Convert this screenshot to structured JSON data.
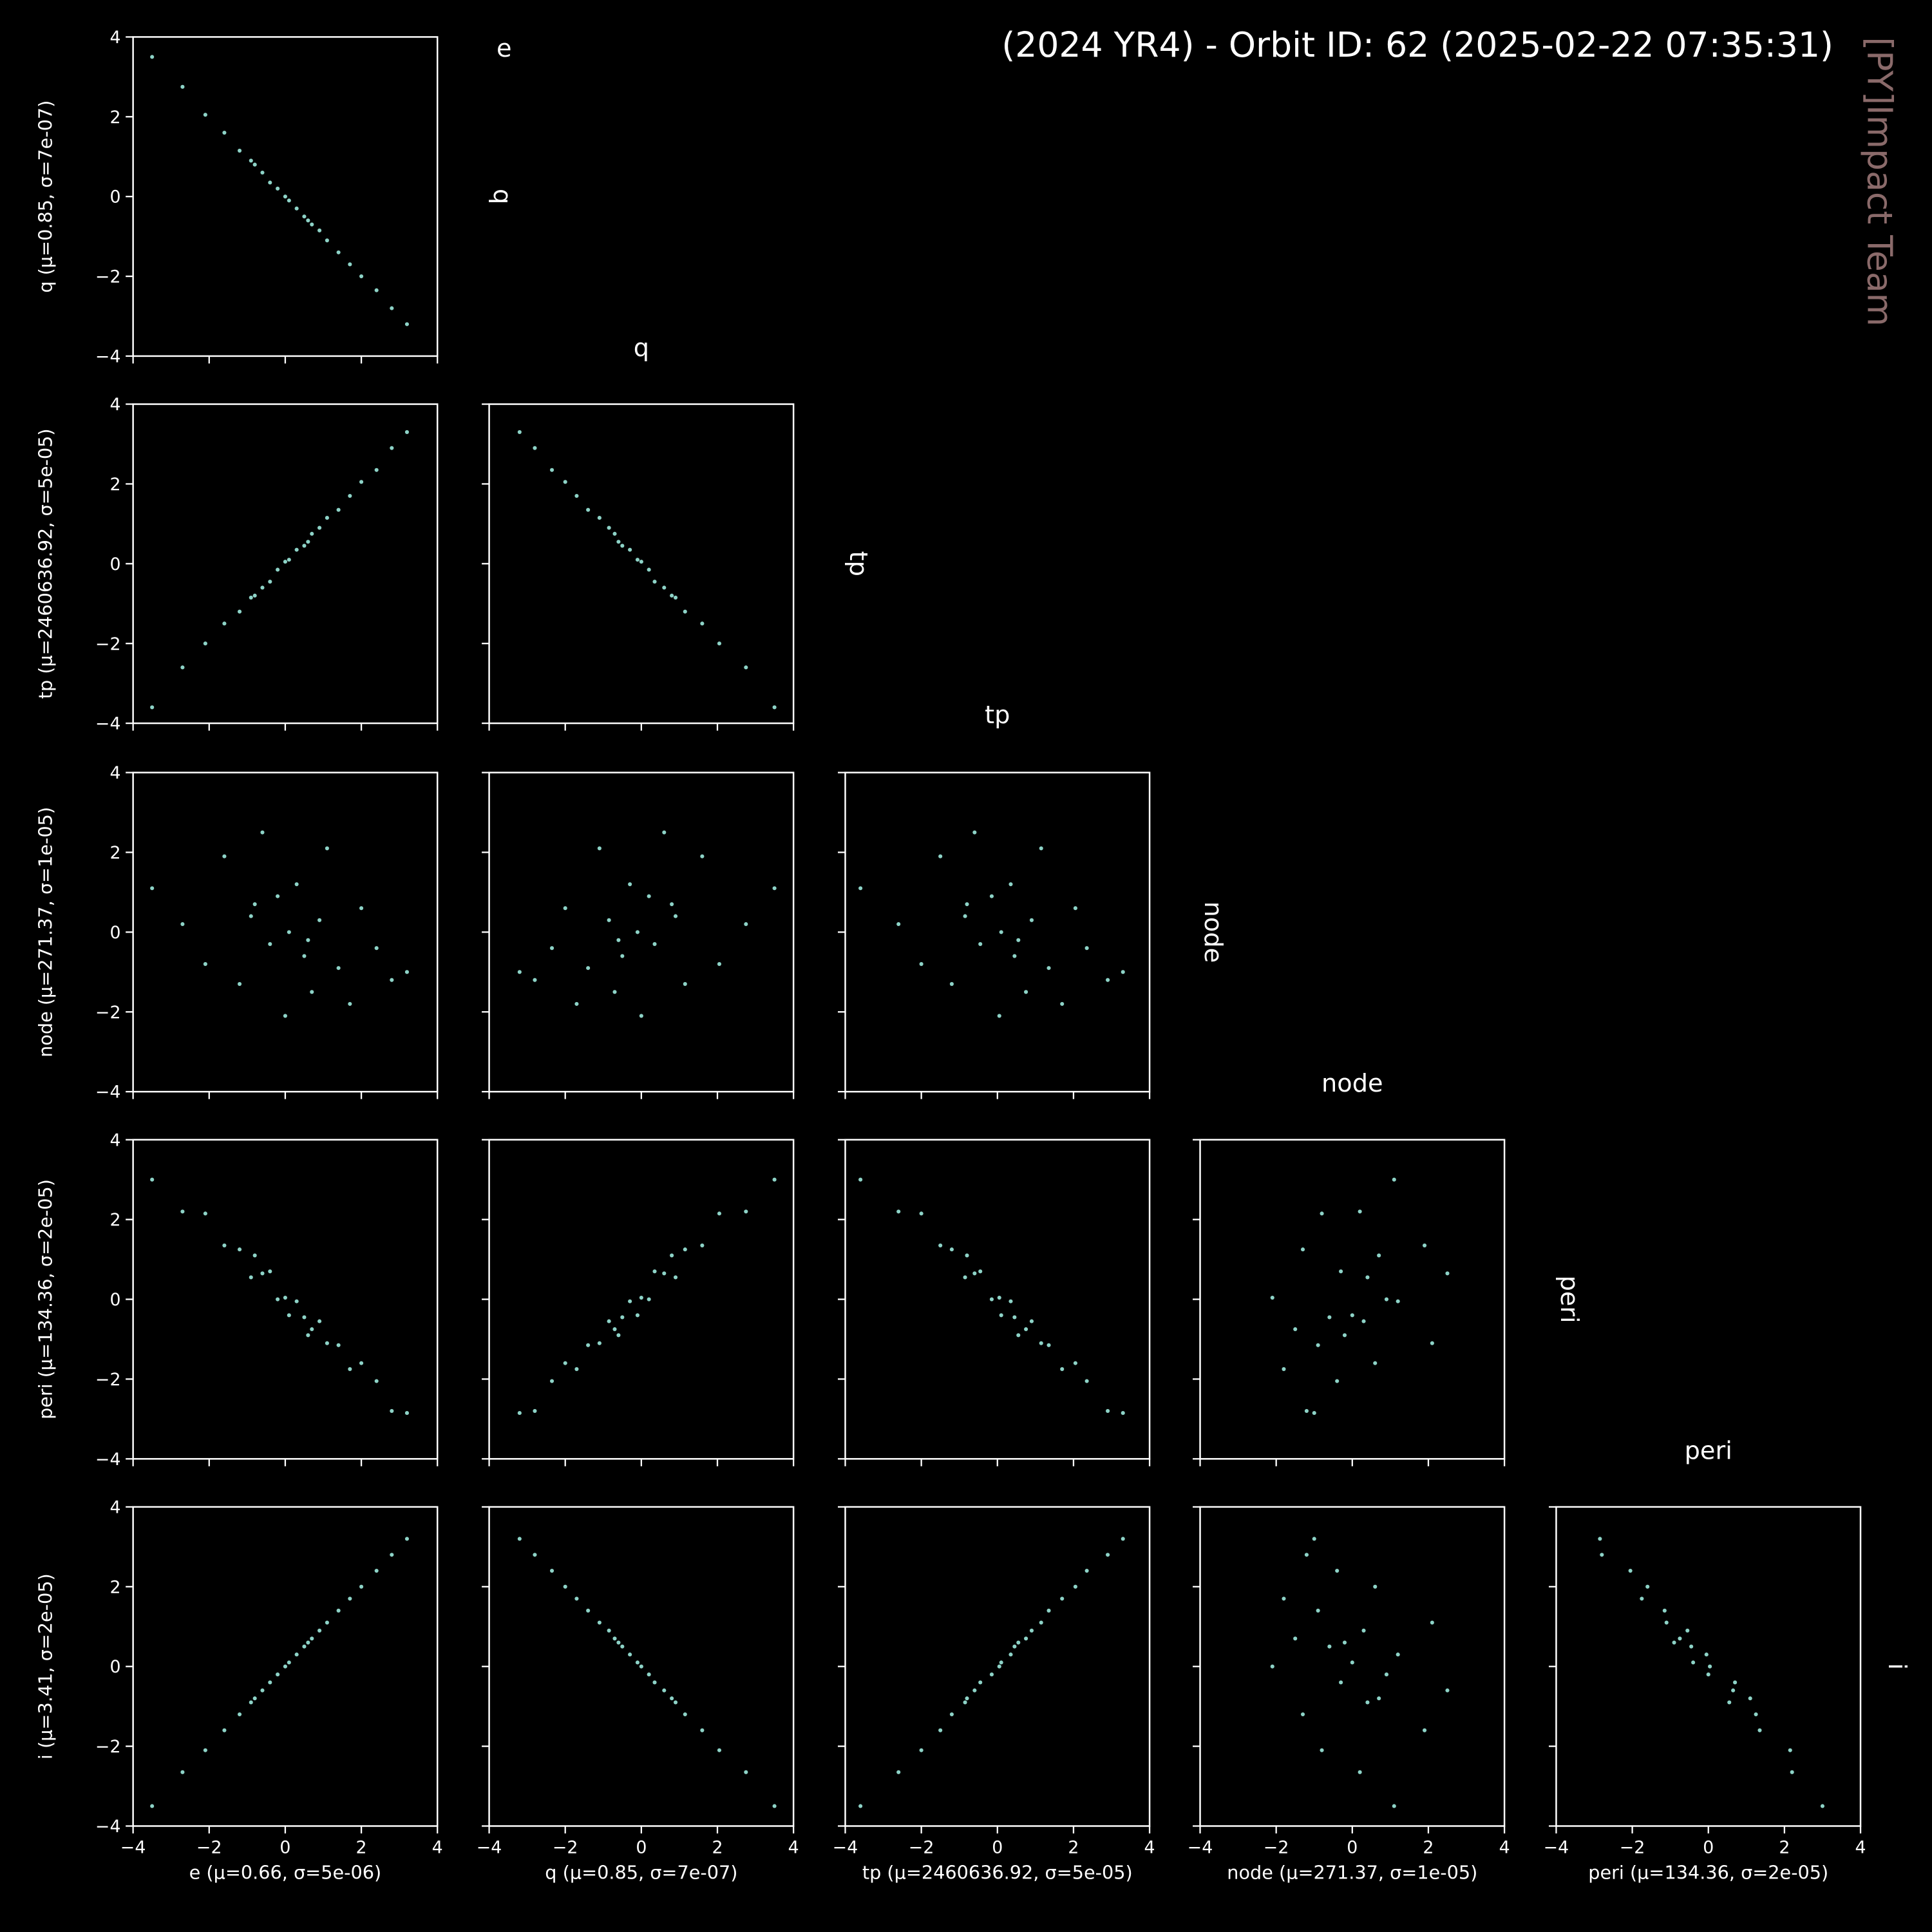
{
  "title": "(2024 YR4) - Orbit ID: 62 (2025-02-22 07:35:31)",
  "watermark": "[PY]Impact Team",
  "variables": [
    "e",
    "q",
    "tp",
    "node",
    "peri",
    "i"
  ],
  "chart_data": [
    {
      "type": "scatter",
      "ylabel": "q (μ=0.85, σ=7e-07)",
      "color": "#8dd3c7",
      "x": [
        -3.5,
        -2.7,
        -2.1,
        -1.6,
        -1.2,
        -0.9,
        -0.6,
        -0.4,
        -0.2,
        0.0,
        0.1,
        0.3,
        0.5,
        0.7,
        0.9,
        1.1,
        1.4,
        1.7,
        2.0,
        2.4,
        2.8,
        3.2,
        -0.8,
        0.6
      ],
      "y": [
        3.5,
        2.75,
        2.05,
        1.6,
        1.15,
        0.9,
        0.6,
        0.35,
        0.2,
        0.0,
        -0.1,
        -0.3,
        -0.5,
        -0.7,
        -0.85,
        -1.1,
        -1.4,
        -1.7,
        -2.0,
        -2.35,
        -2.8,
        -3.2,
        0.8,
        -0.6
      ],
      "xlim": [
        -4,
        4
      ],
      "ylim": [
        -4,
        4
      ],
      "xticks": [
        {
          "value": -4,
          "label": "−4"
        },
        {
          "value": -2,
          "label": "−2"
        },
        0,
        2,
        4
      ],
      "yticks": [
        {
          "value": -4,
          "label": "−4"
        },
        {
          "value": -2,
          "label": "−2"
        },
        0,
        2,
        4
      ]
    },
    {
      "type": "scatter",
      "ylabel": "tp (μ=2460636.92, σ=5e-05)",
      "color": "#8dd3c7",
      "x": [
        -3.5,
        -2.7,
        -2.1,
        -1.6,
        -1.2,
        -0.9,
        -0.6,
        -0.4,
        -0.2,
        0.0,
        0.1,
        0.3,
        0.5,
        0.7,
        0.9,
        1.1,
        1.4,
        1.7,
        2.0,
        2.4,
        2.8,
        3.2,
        -0.8,
        0.6
      ],
      "y": [
        -3.6,
        -2.6,
        -2.0,
        -1.5,
        -1.2,
        -0.85,
        -0.6,
        -0.45,
        -0.15,
        0.05,
        0.1,
        0.35,
        0.45,
        0.75,
        0.9,
        1.15,
        1.35,
        1.7,
        2.05,
        2.35,
        2.9,
        3.3,
        -0.8,
        0.55
      ],
      "xlim": [
        -4,
        4
      ],
      "ylim": [
        -4,
        4
      ],
      "xticks": [
        {
          "value": -4,
          "label": "−4"
        },
        {
          "value": -2,
          "label": "−2"
        },
        0,
        2,
        4
      ],
      "yticks": [
        {
          "value": -4,
          "label": "−4"
        },
        {
          "value": -2,
          "label": "−2"
        },
        0,
        2,
        4
      ]
    },
    {
      "type": "scatter",
      "color": "#8dd3c7",
      "x": [
        3.5,
        2.75,
        2.05,
        1.6,
        1.15,
        0.9,
        0.6,
        0.35,
        0.2,
        0.0,
        -0.1,
        -0.3,
        -0.5,
        -0.7,
        -0.85,
        -1.1,
        -1.4,
        -1.7,
        -2.0,
        -2.35,
        -2.8,
        -3.2,
        0.8,
        -0.6
      ],
      "y": [
        -3.6,
        -2.6,
        -2.0,
        -1.5,
        -1.2,
        -0.85,
        -0.6,
        -0.45,
        -0.15,
        0.05,
        0.1,
        0.35,
        0.45,
        0.75,
        0.9,
        1.15,
        1.35,
        1.7,
        2.05,
        2.35,
        2.9,
        3.3,
        -0.8,
        0.55
      ],
      "xlim": [
        -4,
        4
      ],
      "ylim": [
        -4,
        4
      ],
      "xticks": [
        {
          "value": -4,
          "label": "−4"
        },
        {
          "value": -2,
          "label": "−2"
        },
        0,
        2,
        4
      ],
      "yticks": [
        {
          "value": -4,
          "label": "−4"
        },
        {
          "value": -2,
          "label": "−2"
        },
        0,
        2,
        4
      ]
    },
    {
      "type": "scatter",
      "ylabel": "node (μ=271.37, σ=1e-05)",
      "color": "#8dd3c7",
      "x": [
        -3.5,
        -2.7,
        -2.1,
        -1.6,
        -1.2,
        -0.9,
        -0.6,
        -0.4,
        -0.2,
        0.0,
        0.1,
        0.3,
        0.5,
        0.7,
        0.9,
        1.1,
        1.4,
        1.7,
        2.0,
        2.4,
        2.8,
        3.2,
        -0.8,
        0.6
      ],
      "y": [
        1.1,
        0.2,
        -0.8,
        1.9,
        -1.3,
        0.4,
        2.5,
        -0.3,
        0.9,
        -2.1,
        0.0,
        1.2,
        -0.6,
        -1.5,
        0.3,
        2.1,
        -0.9,
        -1.8,
        0.6,
        -0.4,
        -1.2,
        -1.0,
        0.7,
        -0.2
      ],
      "xlim": [
        -4,
        4
      ],
      "ylim": [
        -4,
        4
      ],
      "xticks": [
        {
          "value": -4,
          "label": "−4"
        },
        {
          "value": -2,
          "label": "−2"
        },
        0,
        2,
        4
      ],
      "yticks": [
        {
          "value": -4,
          "label": "−4"
        },
        {
          "value": -2,
          "label": "−2"
        },
        0,
        2,
        4
      ]
    },
    {
      "type": "scatter",
      "color": "#8dd3c7",
      "x": [
        3.5,
        2.75,
        2.05,
        1.6,
        1.15,
        0.9,
        0.6,
        0.35,
        0.2,
        0.0,
        -0.1,
        -0.3,
        -0.5,
        -0.7,
        -0.85,
        -1.1,
        -1.4,
        -1.7,
        -2.0,
        -2.35,
        -2.8,
        -3.2,
        0.8,
        -0.6
      ],
      "y": [
        1.1,
        0.2,
        -0.8,
        1.9,
        -1.3,
        0.4,
        2.5,
        -0.3,
        0.9,
        -2.1,
        0.0,
        1.2,
        -0.6,
        -1.5,
        0.3,
        2.1,
        -0.9,
        -1.8,
        0.6,
        -0.4,
        -1.2,
        -1.0,
        0.7,
        -0.2
      ],
      "xlim": [
        -4,
        4
      ],
      "ylim": [
        -4,
        4
      ],
      "xticks": [
        {
          "value": -4,
          "label": "−4"
        },
        {
          "value": -2,
          "label": "−2"
        },
        0,
        2,
        4
      ],
      "yticks": [
        {
          "value": -4,
          "label": "−4"
        },
        {
          "value": -2,
          "label": "−2"
        },
        0,
        2,
        4
      ]
    },
    {
      "type": "scatter",
      "color": "#8dd3c7",
      "x": [
        -3.6,
        -2.6,
        -2.0,
        -1.5,
        -1.2,
        -0.85,
        -0.6,
        -0.45,
        -0.15,
        0.05,
        0.1,
        0.35,
        0.45,
        0.75,
        0.9,
        1.15,
        1.35,
        1.7,
        2.05,
        2.35,
        2.9,
        3.3,
        -0.8,
        0.55
      ],
      "y": [
        1.1,
        0.2,
        -0.8,
        1.9,
        -1.3,
        0.4,
        2.5,
        -0.3,
        0.9,
        -2.1,
        0.0,
        1.2,
        -0.6,
        -1.5,
        0.3,
        2.1,
        -0.9,
        -1.8,
        0.6,
        -0.4,
        -1.2,
        -1.0,
        0.7,
        -0.2
      ],
      "xlim": [
        -4,
        4
      ],
      "ylim": [
        -4,
        4
      ],
      "xticks": [
        {
          "value": -4,
          "label": "−4"
        },
        {
          "value": -2,
          "label": "−2"
        },
        0,
        2,
        4
      ],
      "yticks": [
        {
          "value": -4,
          "label": "−4"
        },
        {
          "value": -2,
          "label": "−2"
        },
        0,
        2,
        4
      ]
    },
    {
      "type": "scatter",
      "ylabel": "peri (μ=134.36, σ=2e-05)",
      "color": "#8dd3c7",
      "x": [
        -3.5,
        -2.7,
        -2.1,
        -1.6,
        -1.2,
        -0.9,
        -0.6,
        -0.4,
        -0.2,
        0.0,
        0.1,
        0.3,
        0.5,
        0.7,
        0.9,
        1.1,
        1.4,
        1.7,
        2.0,
        2.4,
        2.8,
        3.2,
        -0.8,
        0.6
      ],
      "y": [
        3.0,
        2.2,
        2.15,
        1.35,
        1.25,
        0.55,
        0.65,
        0.7,
        0.0,
        0.04,
        -0.4,
        -0.05,
        -0.45,
        -0.75,
        -0.55,
        -1.1,
        -1.15,
        -1.75,
        -1.6,
        -2.05,
        -2.8,
        -2.85,
        1.1,
        -0.9
      ],
      "xlim": [
        -4,
        4
      ],
      "ylim": [
        -4,
        4
      ],
      "xticks": [
        {
          "value": -4,
          "label": "−4"
        },
        {
          "value": -2,
          "label": "−2"
        },
        0,
        2,
        4
      ],
      "yticks": [
        {
          "value": -4,
          "label": "−4"
        },
        {
          "value": -2,
          "label": "−2"
        },
        0,
        2,
        4
      ]
    },
    {
      "type": "scatter",
      "color": "#8dd3c7",
      "x": [
        3.5,
        2.75,
        2.05,
        1.6,
        1.15,
        0.9,
        0.6,
        0.35,
        0.2,
        0.0,
        -0.1,
        -0.3,
        -0.5,
        -0.7,
        -0.85,
        -1.1,
        -1.4,
        -1.7,
        -2.0,
        -2.35,
        -2.8,
        -3.2,
        0.8,
        -0.6
      ],
      "y": [
        3.0,
        2.2,
        2.15,
        1.35,
        1.25,
        0.55,
        0.65,
        0.7,
        0.0,
        0.04,
        -0.4,
        -0.05,
        -0.45,
        -0.75,
        -0.55,
        -1.1,
        -1.15,
        -1.75,
        -1.6,
        -2.05,
        -2.8,
        -2.85,
        1.1,
        -0.9
      ],
      "xlim": [
        -4,
        4
      ],
      "ylim": [
        -4,
        4
      ],
      "xticks": [
        {
          "value": -4,
          "label": "−4"
        },
        {
          "value": -2,
          "label": "−2"
        },
        0,
        2,
        4
      ],
      "yticks": [
        {
          "value": -4,
          "label": "−4"
        },
        {
          "value": -2,
          "label": "−2"
        },
        0,
        2,
        4
      ]
    },
    {
      "type": "scatter",
      "color": "#8dd3c7",
      "x": [
        -3.6,
        -2.6,
        -2.0,
        -1.5,
        -1.2,
        -0.85,
        -0.6,
        -0.45,
        -0.15,
        0.05,
        0.1,
        0.35,
        0.45,
        0.75,
        0.9,
        1.15,
        1.35,
        1.7,
        2.05,
        2.35,
        2.9,
        3.3,
        -0.8,
        0.55
      ],
      "y": [
        3.0,
        2.2,
        2.15,
        1.35,
        1.25,
        0.55,
        0.65,
        0.7,
        0.0,
        0.04,
        -0.4,
        -0.05,
        -0.45,
        -0.75,
        -0.55,
        -1.1,
        -1.15,
        -1.75,
        -1.6,
        -2.05,
        -2.8,
        -2.85,
        1.1,
        -0.9
      ],
      "xlim": [
        -4,
        4
      ],
      "ylim": [
        -4,
        4
      ],
      "xticks": [
        {
          "value": -4,
          "label": "−4"
        },
        {
          "value": -2,
          "label": "−2"
        },
        0,
        2,
        4
      ],
      "yticks": [
        {
          "value": -4,
          "label": "−4"
        },
        {
          "value": -2,
          "label": "−2"
        },
        0,
        2,
        4
      ]
    },
    {
      "type": "scatter",
      "color": "#8dd3c7",
      "x": [
        1.1,
        0.2,
        -0.8,
        1.9,
        -1.3,
        0.4,
        2.5,
        -0.3,
        0.9,
        -2.1,
        0.0,
        1.2,
        -0.6,
        -1.5,
        0.3,
        2.1,
        -0.9,
        -1.8,
        0.6,
        -0.4,
        -1.2,
        -1.0,
        0.7,
        -0.2
      ],
      "y": [
        3.0,
        2.2,
        2.15,
        1.35,
        1.25,
        0.55,
        0.65,
        0.7,
        0.0,
        0.04,
        -0.4,
        -0.05,
        -0.45,
        -0.75,
        -0.55,
        -1.1,
        -1.15,
        -1.75,
        -1.6,
        -2.05,
        -2.8,
        -2.85,
        1.1,
        -0.9
      ],
      "xlim": [
        -4,
        4
      ],
      "ylim": [
        -4,
        4
      ],
      "xticks": [
        {
          "value": -4,
          "label": "−4"
        },
        {
          "value": -2,
          "label": "−2"
        },
        0,
        2,
        4
      ],
      "yticks": [
        {
          "value": -4,
          "label": "−4"
        },
        {
          "value": -2,
          "label": "−2"
        },
        0,
        2,
        4
      ]
    },
    {
      "type": "scatter",
      "xlabel": "e (μ=0.66, σ=5e-06)",
      "ylabel": "i (μ=3.41, σ=2e-05)",
      "color": "#8dd3c7",
      "x": [
        -3.5,
        -2.7,
        -2.1,
        -1.6,
        -1.2,
        -0.9,
        -0.6,
        -0.4,
        -0.2,
        0.0,
        0.1,
        0.3,
        0.5,
        0.7,
        0.9,
        1.1,
        1.4,
        1.7,
        2.0,
        2.4,
        2.8,
        3.2,
        -0.8,
        0.6
      ],
      "y": [
        -3.5,
        -2.65,
        -2.1,
        -1.6,
        -1.2,
        -0.9,
        -0.6,
        -0.4,
        -0.2,
        0.0,
        0.1,
        0.3,
        0.5,
        0.7,
        0.9,
        1.1,
        1.4,
        1.7,
        2.0,
        2.4,
        2.8,
        3.2,
        -0.8,
        0.6
      ],
      "xlim": [
        -4,
        4
      ],
      "ylim": [
        -4,
        4
      ],
      "xticks": [
        {
          "value": -4,
          "label": "−4"
        },
        {
          "value": -2,
          "label": "−2"
        },
        0,
        2,
        4
      ],
      "yticks": [
        {
          "value": -4,
          "label": "−4"
        },
        {
          "value": -2,
          "label": "−2"
        },
        0,
        2,
        4
      ]
    },
    {
      "type": "scatter",
      "xlabel": "q (μ=0.85, σ=7e-07)",
      "color": "#8dd3c7",
      "x": [
        3.5,
        2.75,
        2.05,
        1.6,
        1.15,
        0.9,
        0.6,
        0.35,
        0.2,
        0.0,
        -0.1,
        -0.3,
        -0.5,
        -0.7,
        -0.85,
        -1.1,
        -1.4,
        -1.7,
        -2.0,
        -2.35,
        -2.8,
        -3.2,
        0.8,
        -0.6
      ],
      "y": [
        -3.5,
        -2.65,
        -2.1,
        -1.6,
        -1.2,
        -0.9,
        -0.6,
        -0.4,
        -0.2,
        0.0,
        0.1,
        0.3,
        0.5,
        0.7,
        0.9,
        1.1,
        1.4,
        1.7,
        2.0,
        2.4,
        2.8,
        3.2,
        -0.8,
        0.6
      ],
      "xlim": [
        -4,
        4
      ],
      "ylim": [
        -4,
        4
      ],
      "xticks": [
        {
          "value": -4,
          "label": "−4"
        },
        {
          "value": -2,
          "label": "−2"
        },
        0,
        2,
        4
      ],
      "yticks": [
        {
          "value": -4,
          "label": "−4"
        },
        {
          "value": -2,
          "label": "−2"
        },
        0,
        2,
        4
      ]
    },
    {
      "type": "scatter",
      "xlabel": "tp (μ=2460636.92, σ=5e-05)",
      "color": "#8dd3c7",
      "x": [
        -3.6,
        -2.6,
        -2.0,
        -1.5,
        -1.2,
        -0.85,
        -0.6,
        -0.45,
        -0.15,
        0.05,
        0.1,
        0.35,
        0.45,
        0.75,
        0.9,
        1.15,
        1.35,
        1.7,
        2.05,
        2.35,
        2.9,
        3.3,
        -0.8,
        0.55
      ],
      "y": [
        -3.5,
        -2.65,
        -2.1,
        -1.6,
        -1.2,
        -0.9,
        -0.6,
        -0.4,
        -0.2,
        0.0,
        0.1,
        0.3,
        0.5,
        0.7,
        0.9,
        1.1,
        1.4,
        1.7,
        2.0,
        2.4,
        2.8,
        3.2,
        -0.8,
        0.6
      ],
      "xlim": [
        -4,
        4
      ],
      "ylim": [
        -4,
        4
      ],
      "xticks": [
        {
          "value": -4,
          "label": "−4"
        },
        {
          "value": -2,
          "label": "−2"
        },
        0,
        2,
        4
      ],
      "yticks": [
        {
          "value": -4,
          "label": "−4"
        },
        {
          "value": -2,
          "label": "−2"
        },
        0,
        2,
        4
      ]
    },
    {
      "type": "scatter",
      "xlabel": "node (μ=271.37, σ=1e-05)",
      "color": "#8dd3c7",
      "x": [
        1.1,
        0.2,
        -0.8,
        1.9,
        -1.3,
        0.4,
        2.5,
        -0.3,
        0.9,
        -2.1,
        0.0,
        1.2,
        -0.6,
        -1.5,
        0.3,
        2.1,
        -0.9,
        -1.8,
        0.6,
        -0.4,
        -1.2,
        -1.0,
        0.7,
        -0.2
      ],
      "y": [
        -3.5,
        -2.65,
        -2.1,
        -1.6,
        -1.2,
        -0.9,
        -0.6,
        -0.4,
        -0.2,
        0.0,
        0.1,
        0.3,
        0.5,
        0.7,
        0.9,
        1.1,
        1.4,
        1.7,
        2.0,
        2.4,
        2.8,
        3.2,
        -0.8,
        0.6
      ],
      "xlim": [
        -4,
        4
      ],
      "ylim": [
        -4,
        4
      ],
      "xticks": [
        {
          "value": -4,
          "label": "−4"
        },
        {
          "value": -2,
          "label": "−2"
        },
        0,
        2,
        4
      ],
      "yticks": [
        {
          "value": -4,
          "label": "−4"
        },
        {
          "value": -2,
          "label": "−2"
        },
        0,
        2,
        4
      ]
    },
    {
      "type": "scatter",
      "xlabel": "peri (μ=134.36, σ=2e-05)",
      "color": "#8dd3c7",
      "x": [
        3.0,
        2.2,
        2.15,
        1.35,
        1.25,
        0.55,
        0.65,
        0.7,
        0.0,
        0.04,
        -0.4,
        -0.05,
        -0.45,
        -0.75,
        -0.55,
        -1.1,
        -1.15,
        -1.75,
        -1.6,
        -2.05,
        -2.8,
        -2.85,
        1.1,
        -0.9
      ],
      "y": [
        -3.5,
        -2.65,
        -2.1,
        -1.6,
        -1.2,
        -0.9,
        -0.6,
        -0.4,
        -0.2,
        0.0,
        0.1,
        0.3,
        0.5,
        0.7,
        0.9,
        1.1,
        1.4,
        1.7,
        2.0,
        2.4,
        2.8,
        3.2,
        -0.8,
        0.6
      ],
      "xlim": [
        -4,
        4
      ],
      "ylim": [
        -4,
        4
      ],
      "xticks": [
        {
          "value": -4,
          "label": "−4"
        },
        {
          "value": -2,
          "label": "−2"
        },
        0,
        2,
        4
      ],
      "yticks": [
        {
          "value": -4,
          "label": "−4"
        },
        {
          "value": -2,
          "label": "−2"
        },
        0,
        2,
        4
      ]
    }
  ]
}
